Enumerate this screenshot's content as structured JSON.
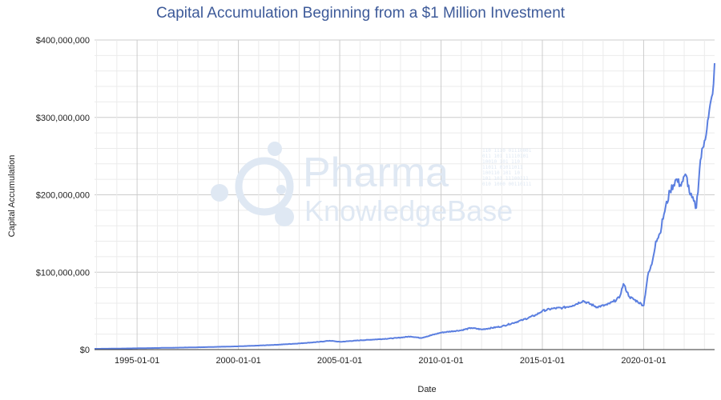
{
  "chart_data": {
    "type": "line",
    "title": "Capital Accumulation Beginning from a $1 Million Investment",
    "xlabel": "Date",
    "ylabel": "Capital Accumulation",
    "xlim": [
      1992.9,
      2023.5
    ],
    "ylim": [
      0,
      400000000
    ],
    "yticks": [
      {
        "value": 0,
        "label": "$0"
      },
      {
        "value": 100000000,
        "label": "$100,000,000"
      },
      {
        "value": 200000000,
        "label": "$200,000,000"
      },
      {
        "value": 300000000,
        "label": "$300,000,000"
      },
      {
        "value": 400000000,
        "label": "$400,000,000"
      }
    ],
    "xticks": [
      {
        "value": 1995,
        "label": "1995-01-01"
      },
      {
        "value": 2000,
        "label": "2000-01-01"
      },
      {
        "value": 2005,
        "label": "2005-01-01"
      },
      {
        "value": 2010,
        "label": "2010-01-01"
      },
      {
        "value": 2015,
        "label": "2015-01-01"
      },
      {
        "value": 2020,
        "label": "2020-01-01"
      }
    ],
    "grid": true,
    "legend": "none",
    "series": [
      {
        "name": "Capital Accumulation",
        "color": "#5b7fe0",
        "x": [
          1992.9,
          1994.0,
          1995.0,
          1996.0,
          1997.0,
          1998.0,
          1999.0,
          2000.0,
          2001.0,
          2002.0,
          2003.0,
          2004.0,
          2004.5,
          2005.0,
          2006.0,
          2007.0,
          2007.8,
          2008.5,
          2009.0,
          2009.3,
          2010.0,
          2011.0,
          2011.5,
          2012.0,
          2013.0,
          2014.0,
          2014.7,
          2015.0,
          2015.5,
          2016.0,
          2016.5,
          2017.0,
          2017.7,
          2018.2,
          2018.5,
          2018.8,
          2019.0,
          2019.3,
          2019.7,
          2020.0,
          2020.2,
          2020.4,
          2020.6,
          2020.8,
          2021.0,
          2021.3,
          2021.6,
          2021.8,
          2022.1,
          2022.3,
          2022.6,
          2022.8,
          2023.0,
          2023.2,
          2023.4,
          2023.5
        ],
        "values": [
          1000000,
          1300000,
          1700000,
          2100000,
          2500000,
          3000000,
          3600000,
          4200000,
          5200000,
          6400000,
          8000000,
          10000000,
          11500000,
          10000000,
          12000000,
          13500000,
          15000000,
          17000000,
          15000000,
          17000000,
          22000000,
          25000000,
          28000000,
          26000000,
          30000000,
          38000000,
          45000000,
          50000000,
          53000000,
          54000000,
          57000000,
          63000000,
          55000000,
          58000000,
          62000000,
          67000000,
          85000000,
          68000000,
          62000000,
          57000000,
          95000000,
          110000000,
          140000000,
          150000000,
          175000000,
          205000000,
          220000000,
          213000000,
          225000000,
          200000000,
          183000000,
          245000000,
          270000000,
          300000000,
          330000000,
          370000000
        ]
      }
    ]
  },
  "watermark": {
    "line1": "Pharma",
    "line2": "KnowledgeBase",
    "bits": [
      "110 1110 01110001",
      "011 101 11110101",
      "10010 101 110",
      "11011 01011011",
      "100110 101 10",
      "101 101 11100111",
      "010 1000 00110111"
    ],
    "color": "#dfe8f3"
  }
}
